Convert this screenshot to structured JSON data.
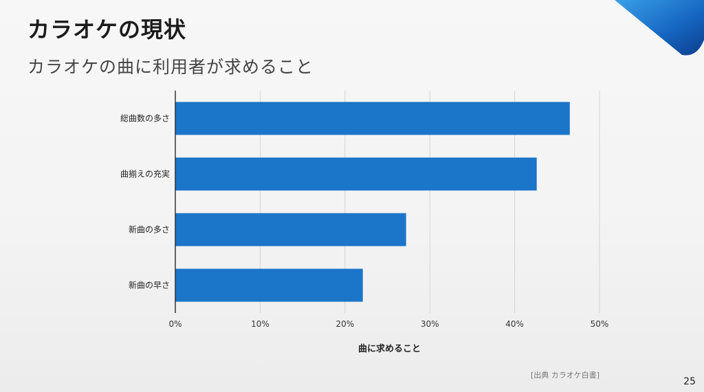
{
  "slide": {
    "title": "カラオケの現状",
    "subtitle": "カラオケの曲に利用者が求めること",
    "source": "[出典 カラオケ白書]",
    "page_number": "25"
  },
  "colors": {
    "bar": "#1b75c9",
    "accent": "#1565c0",
    "grid": "#d4d4d4",
    "axis": "#333333"
  },
  "chart_data": {
    "type": "bar",
    "orientation": "horizontal",
    "categories": [
      "総曲数の多さ",
      "曲揃えの充実",
      "新曲の多さ",
      "新曲の早さ"
    ],
    "values": [
      46.5,
      42.6,
      27.2,
      22.1
    ],
    "xlabel": "曲に求めること",
    "xlim": [
      0,
      50
    ],
    "xticks": [
      0,
      10,
      20,
      30,
      40,
      50
    ],
    "xtick_labels": [
      "0%",
      "10%",
      "20%",
      "30%",
      "40%",
      "50%"
    ],
    "grid": true,
    "legend": "none"
  }
}
